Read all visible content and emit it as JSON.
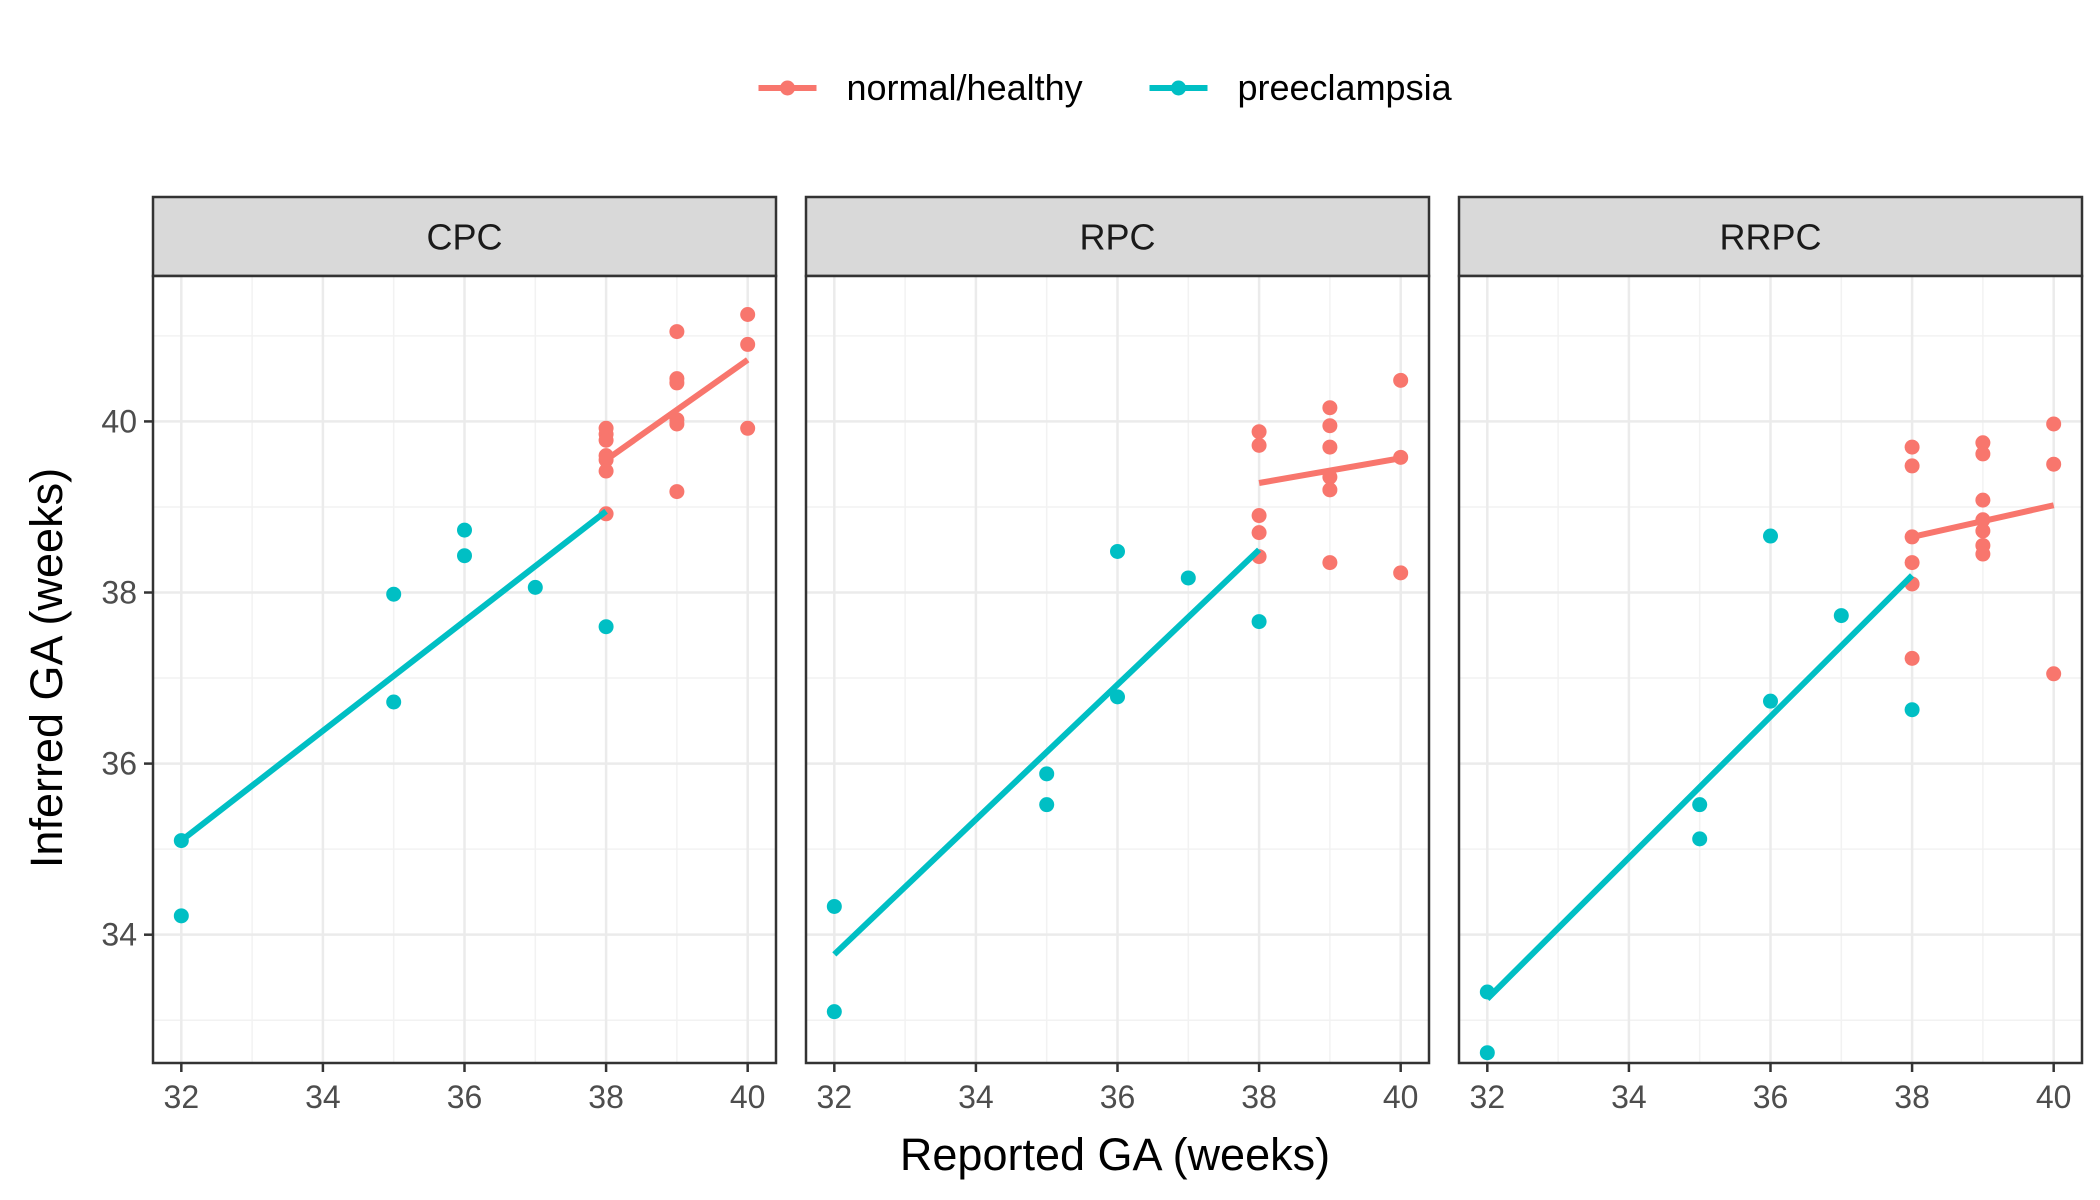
{
  "chart_data": {
    "type": "scatter",
    "xlabel": "Reported GA (weeks)",
    "ylabel": "Inferred GA (weeks)",
    "xlim": [
      31.6,
      40.4
    ],
    "ylim": [
      32.5,
      41.7
    ],
    "xticks": [
      32,
      34,
      36,
      38,
      40
    ],
    "yticks": [
      34,
      36,
      38,
      40
    ],
    "grid": true,
    "legend_position": "top",
    "legend": [
      {
        "name": "normal/healthy",
        "color": "#F8766D"
      },
      {
        "name": "preeclampsia",
        "color": "#00BFC4"
      }
    ],
    "panels": [
      {
        "label": "CPC",
        "series": [
          {
            "name": "normal/healthy",
            "color": "#F8766D",
            "points": [
              [
                38,
                39.92
              ],
              [
                38,
                39.85
              ],
              [
                38,
                39.78
              ],
              [
                38,
                39.6
              ],
              [
                38,
                39.55
              ],
              [
                38,
                39.42
              ],
              [
                38,
                38.92
              ],
              [
                39,
                41.05
              ],
              [
                39,
                40.5
              ],
              [
                39,
                40.45
              ],
              [
                39,
                40.02
              ],
              [
                39,
                39.97
              ],
              [
                39,
                39.18
              ],
              [
                40,
                41.25
              ],
              [
                40,
                40.9
              ],
              [
                40,
                39.92
              ]
            ],
            "fit": [
              [
                38,
                39.55
              ],
              [
                40,
                40.72
              ]
            ]
          },
          {
            "name": "preeclampsia",
            "color": "#00BFC4",
            "points": [
              [
                32,
                35.1
              ],
              [
                32,
                34.22
              ],
              [
                35,
                37.98
              ],
              [
                35,
                36.72
              ],
              [
                36,
                38.73
              ],
              [
                36,
                38.43
              ],
              [
                37,
                38.06
              ],
              [
                38,
                37.6
              ]
            ],
            "fit": [
              [
                32,
                35.1
              ],
              [
                38,
                38.95
              ]
            ]
          }
        ]
      },
      {
        "label": "RPC",
        "series": [
          {
            "name": "normal/healthy",
            "color": "#F8766D",
            "points": [
              [
                38,
                39.88
              ],
              [
                38,
                39.72
              ],
              [
                38,
                38.9
              ],
              [
                38,
                38.7
              ],
              [
                38,
                38.42
              ],
              [
                39,
                40.16
              ],
              [
                39,
                39.95
              ],
              [
                39,
                39.7
              ],
              [
                39,
                39.35
              ],
              [
                39,
                39.2
              ],
              [
                39,
                38.35
              ],
              [
                40,
                40.48
              ],
              [
                40,
                39.58
              ],
              [
                40,
                38.23
              ]
            ],
            "fit": [
              [
                38,
                39.28
              ],
              [
                40,
                39.57
              ]
            ]
          },
          {
            "name": "preeclampsia",
            "color": "#00BFC4",
            "points": [
              [
                32,
                34.33
              ],
              [
                32,
                33.1
              ],
              [
                35,
                35.88
              ],
              [
                35,
                35.52
              ],
              [
                36,
                38.48
              ],
              [
                36,
                36.78
              ],
              [
                37,
                38.17
              ],
              [
                38,
                37.66
              ]
            ],
            "fit": [
              [
                32,
                33.77
              ],
              [
                38,
                38.5
              ]
            ]
          }
        ]
      },
      {
        "label": "RRPC",
        "series": [
          {
            "name": "normal/healthy",
            "color": "#F8766D",
            "points": [
              [
                38,
                39.7
              ],
              [
                38,
                39.48
              ],
              [
                38,
                38.65
              ],
              [
                38,
                38.35
              ],
              [
                38,
                38.1
              ],
              [
                38,
                37.23
              ],
              [
                39,
                39.75
              ],
              [
                39,
                39.62
              ],
              [
                39,
                39.08
              ],
              [
                39,
                38.85
              ],
              [
                39,
                38.72
              ],
              [
                39,
                38.55
              ],
              [
                39,
                38.45
              ],
              [
                40,
                39.97
              ],
              [
                40,
                39.5
              ],
              [
                40,
                37.05
              ]
            ],
            "fit": [
              [
                38,
                38.65
              ],
              [
                40,
                39.02
              ]
            ]
          },
          {
            "name": "preeclampsia",
            "color": "#00BFC4",
            "points": [
              [
                32,
                33.33
              ],
              [
                32,
                32.62
              ],
              [
                35,
                35.52
              ],
              [
                35,
                35.12
              ],
              [
                36,
                38.66
              ],
              [
                36,
                36.73
              ],
              [
                37,
                37.73
              ],
              [
                38,
                36.63
              ]
            ],
            "fit": [
              [
                32,
                33.25
              ],
              [
                38,
                38.2
              ]
            ]
          }
        ]
      }
    ]
  }
}
